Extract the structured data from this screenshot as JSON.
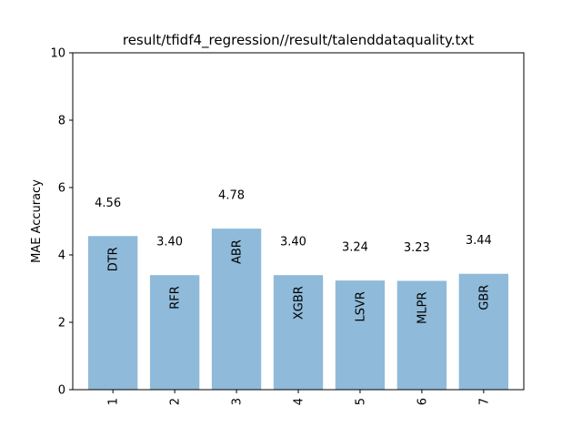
{
  "chart_data": {
    "type": "bar",
    "title": "result/tfidf4_regression//result/talenddataquality.txt",
    "xlabel": "",
    "ylabel": "MAE Accuracy",
    "ylim": [
      0,
      10
    ],
    "yticks": [
      "0",
      "2",
      "4",
      "6",
      "8",
      "10"
    ],
    "categories": [
      "1",
      "2",
      "3",
      "4",
      "5",
      "6",
      "7"
    ],
    "values": [
      4.56,
      3.4,
      4.78,
      3.4,
      3.24,
      3.23,
      3.44
    ],
    "value_labels": [
      "4.56",
      "3.40",
      "4.78",
      "3.40",
      "3.24",
      "3.23",
      "3.44"
    ],
    "bar_labels": [
      "DTR",
      "RFR",
      "ABR",
      "XGBR",
      "LSVR",
      "MLPR",
      "GBR"
    ],
    "bar_color": "#8fbad9",
    "grid": false
  }
}
